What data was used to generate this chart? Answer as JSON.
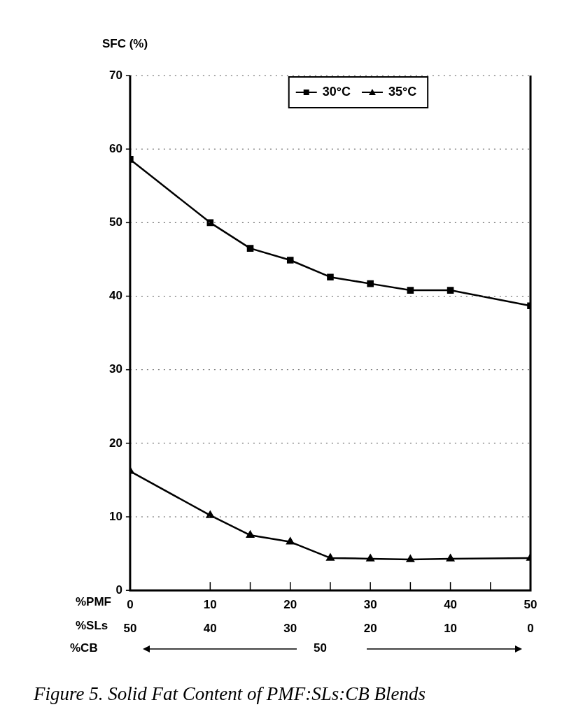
{
  "chart_data": {
    "type": "line",
    "ylabel": "SFC (%)",
    "xlabel": "%PMF",
    "x2label": "%SLs",
    "xlim": [
      0,
      50
    ],
    "xticks": [
      0,
      10,
      {
        "value": 15,
        "label": null
      },
      20,
      {
        "value": 25,
        "label": null
      },
      30,
      {
        "value": 35,
        "label": null
      },
      40,
      {
        "value": 45,
        "label": null
      },
      50
    ],
    "x2lim": [
      50,
      0
    ],
    "x2ticks": [
      50,
      40,
      30,
      20,
      10,
      0
    ],
    "ylim": [
      0,
      70
    ],
    "yticks": [
      0,
      10,
      20,
      30,
      40,
      50,
      60,
      70
    ],
    "grid": "y",
    "legend": "top",
    "line_style": "solid",
    "series": [
      {
        "name": "30°C",
        "color": "#000000",
        "marker": "square",
        "x": [
          0,
          10,
          15,
          20,
          25,
          30,
          35,
          40,
          50
        ],
        "values": [
          58.6,
          50,
          46.5,
          44.9,
          42.6,
          41.7,
          40.8,
          40.8,
          38.7
        ]
      },
      {
        "name": "35°C",
        "color": "#000000",
        "marker": "triangle",
        "x": [
          0,
          10,
          15,
          20,
          25,
          30,
          35,
          40,
          50
        ],
        "values": [
          16.2,
          10.2,
          7.5,
          6.6,
          4.4,
          4.3,
          4.2,
          4.3,
          4.4
        ]
      }
    ],
    "annotations": [
      "%CB",
      "50",
      "Figure 5. Solid Fat Content of PMF:SLs:CB Blends"
    ]
  }
}
